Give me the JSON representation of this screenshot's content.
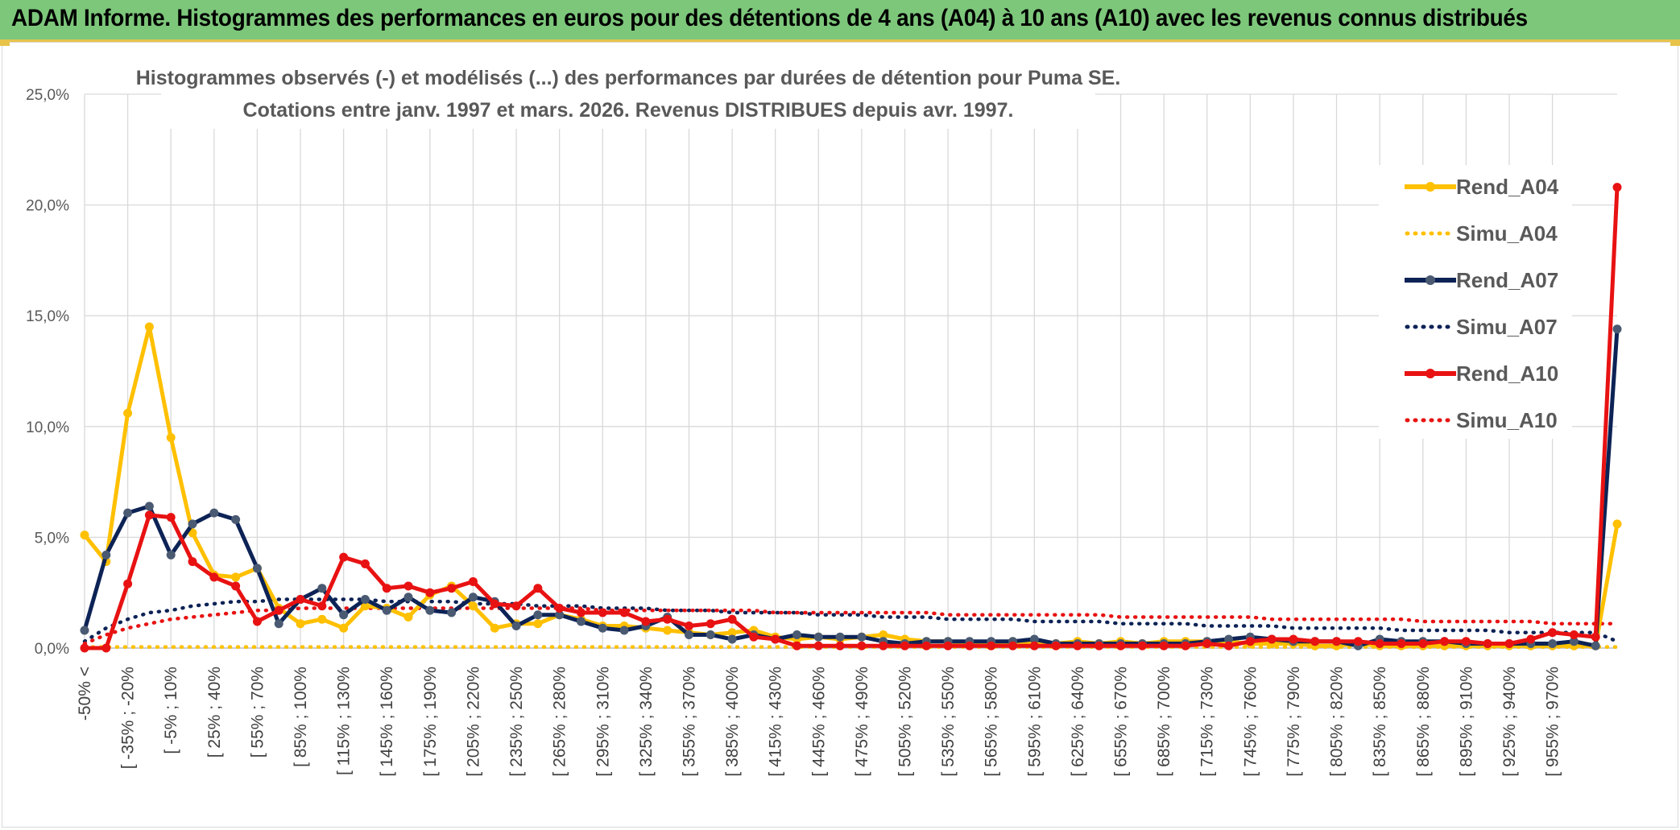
{
  "header": {
    "title": "ADAM Informe. Histogrammes des performances en euros pour des détentions de 4 ans (A04) à 10 ans (A10) avec les revenus connus distribués"
  },
  "chart_data": {
    "type": "line",
    "title_line1": "Histogrammes observés (-) et modélisés (...) des performances par durées de détention pour Puma SE.",
    "title_line2": "Cotations entre janv. 1997 et mars. 2026. Revenus DISTRIBUES depuis avr. 1997.",
    "ylim": [
      0,
      25
    ],
    "yticks": [
      "0,0%",
      "5,0%",
      "10,0%",
      "15,0%",
      "20,0%",
      "25,0%"
    ],
    "ytick_values": [
      0,
      5,
      10,
      15,
      20,
      25
    ],
    "legend_position": "right",
    "grid": true,
    "xtick_labels": [
      "-50% <",
      "[ -35% ; -20%",
      "[ -5% ; 10%",
      "[ 25% ; 40%",
      "[ 55% ; 70%",
      "[ 85% ; 100%",
      "[ 115% ; 130%",
      "[ 145% ; 160%",
      "[ 175% ; 190%",
      "[ 205% ; 220%",
      "[ 235% ; 250%",
      "[ 265% ; 280%",
      "[ 295% ; 310%",
      "[ 325% ; 340%",
      "[ 355% ; 370%",
      "[ 385% ; 400%",
      "[ 415% ; 430%",
      "[ 445% ; 460%",
      "[ 475% ; 490%",
      "[ 505% ; 520%",
      "[ 535% ; 550%",
      "[ 565% ; 580%",
      "[ 595% ; 610%",
      "[ 625% ; 640%",
      "[ 655% ; 670%",
      "[ 685% ; 700%",
      "[ 715% ; 730%",
      "[ 745% ; 760%",
      "[ 775% ; 790%",
      "[ 805% ; 820%",
      "[ 835% ; 850%",
      "[ 865% ; 880%",
      "[ 895% ; 910%",
      "[ 925% ; 940%",
      "[ 955% ; 970%"
    ],
    "series": [
      {
        "name": "Rend_A04",
        "style": "solid",
        "color": "#ffc000",
        "values": [
          5.1,
          3.9,
          10.6,
          14.5,
          9.5,
          5.2,
          3.3,
          3.2,
          3.6,
          1.8,
          1.1,
          1.3,
          0.9,
          1.9,
          1.8,
          1.4,
          2.4,
          2.8,
          1.9,
          0.9,
          1.1,
          1.1,
          1.5,
          1.3,
          1.0,
          1.0,
          0.9,
          0.8,
          0.7,
          0.6,
          0.7,
          0.8,
          0.5,
          0.4,
          0.5,
          0.4,
          0.5,
          0.6,
          0.4,
          0.3,
          0.3,
          0.2,
          0.2,
          0.3,
          0.2,
          0.2,
          0.3,
          0.2,
          0.3,
          0.2,
          0.3,
          0.3,
          0.3,
          0.3,
          0.2,
          0.2,
          0.2,
          0.1,
          0.1,
          0.2,
          0.1,
          0.1,
          0.1,
          0.1,
          0.1,
          0.1,
          0.1,
          0.1,
          0.1,
          0.1,
          0.1,
          5.6
        ]
      },
      {
        "name": "Simu_A04",
        "style": "dotted",
        "color": "#ffc000",
        "values": [
          0.05,
          0.05,
          0.05,
          0.05,
          0.05,
          0.05,
          0.05,
          0.05,
          0.05,
          0.05,
          0.05,
          0.05,
          0.05,
          0.05,
          0.05,
          0.05,
          0.05,
          0.05,
          0.05,
          0.05,
          0.05,
          0.05,
          0.05,
          0.05,
          0.05,
          0.05,
          0.05,
          0.05,
          0.05,
          0.05,
          0.05,
          0.05,
          0.05,
          0.05,
          0.05,
          0.05,
          0.05,
          0.05,
          0.05,
          0.05,
          0.05,
          0.05,
          0.05,
          0.05,
          0.05,
          0.05,
          0.05,
          0.05,
          0.05,
          0.05,
          0.05,
          0.05,
          0.05,
          0.05,
          0.05,
          0.05,
          0.05,
          0.05,
          0.05,
          0.05,
          0.05,
          0.05,
          0.05,
          0.05,
          0.05,
          0.05,
          0.05,
          0.05,
          0.05,
          0.05,
          0.05,
          0.05
        ]
      },
      {
        "name": "Rend_A07",
        "style": "solid",
        "color": "#0d2356",
        "values": [
          0.8,
          4.2,
          6.1,
          6.4,
          4.2,
          5.6,
          6.1,
          5.8,
          3.6,
          1.1,
          2.2,
          2.7,
          1.5,
          2.2,
          1.7,
          2.3,
          1.7,
          1.6,
          2.3,
          2.1,
          1.0,
          1.5,
          1.5,
          1.2,
          0.9,
          0.8,
          1.0,
          1.4,
          0.6,
          0.6,
          0.4,
          0.6,
          0.4,
          0.6,
          0.5,
          0.5,
          0.5,
          0.3,
          0.2,
          0.3,
          0.3,
          0.3,
          0.3,
          0.3,
          0.4,
          0.2,
          0.2,
          0.2,
          0.2,
          0.2,
          0.2,
          0.2,
          0.3,
          0.4,
          0.5,
          0.4,
          0.3,
          0.3,
          0.3,
          0.1,
          0.4,
          0.3,
          0.3,
          0.3,
          0.2,
          0.2,
          0.2,
          0.2,
          0.2,
          0.3,
          0.1,
          14.4
        ]
      },
      {
        "name": "Simu_A07",
        "style": "dotted",
        "color": "#0d2356",
        "values": [
          0.3,
          0.9,
          1.3,
          1.6,
          1.7,
          1.9,
          2.0,
          2.1,
          2.1,
          2.2,
          2.2,
          2.2,
          2.2,
          2.2,
          2.1,
          2.1,
          2.1,
          2.1,
          2.0,
          2.0,
          2.0,
          1.9,
          1.9,
          1.9,
          1.8,
          1.8,
          1.8,
          1.7,
          1.7,
          1.7,
          1.6,
          1.6,
          1.6,
          1.6,
          1.5,
          1.5,
          1.5,
          1.4,
          1.4,
          1.4,
          1.3,
          1.3,
          1.3,
          1.3,
          1.2,
          1.2,
          1.2,
          1.2,
          1.1,
          1.1,
          1.1,
          1.1,
          1.0,
          1.0,
          1.0,
          1.0,
          0.9,
          0.9,
          0.9,
          0.9,
          0.9,
          0.8,
          0.8,
          0.8,
          0.8,
          0.8,
          0.7,
          0.7,
          0.7,
          0.7,
          0.7,
          0.3
        ]
      },
      {
        "name": "Rend_A10",
        "style": "solid",
        "color": "#e81212",
        "values": [
          0.0,
          0.0,
          2.9,
          6.0,
          5.9,
          3.9,
          3.2,
          2.8,
          1.2,
          1.7,
          2.2,
          1.9,
          4.1,
          3.8,
          2.7,
          2.8,
          2.5,
          2.7,
          3.0,
          2.0,
          1.9,
          2.7,
          1.8,
          1.6,
          1.6,
          1.6,
          1.2,
          1.3,
          1.0,
          1.1,
          1.3,
          0.5,
          0.4,
          0.1,
          0.1,
          0.1,
          0.1,
          0.1,
          0.1,
          0.1,
          0.1,
          0.1,
          0.1,
          0.1,
          0.1,
          0.1,
          0.1,
          0.1,
          0.1,
          0.1,
          0.1,
          0.1,
          0.2,
          0.1,
          0.3,
          0.4,
          0.4,
          0.3,
          0.3,
          0.3,
          0.2,
          0.2,
          0.2,
          0.3,
          0.3,
          0.2,
          0.2,
          0.4,
          0.7,
          0.6,
          0.5,
          20.8
        ]
      },
      {
        "name": "Simu_A10",
        "style": "dotted",
        "color": "#e81212",
        "values": [
          0.2,
          0.6,
          0.9,
          1.1,
          1.3,
          1.4,
          1.5,
          1.6,
          1.7,
          1.7,
          1.8,
          1.8,
          1.8,
          1.8,
          1.8,
          1.8,
          1.8,
          1.8,
          1.8,
          1.8,
          1.8,
          1.8,
          1.8,
          1.8,
          1.7,
          1.7,
          1.7,
          1.7,
          1.7,
          1.7,
          1.7,
          1.7,
          1.6,
          1.6,
          1.6,
          1.6,
          1.6,
          1.6,
          1.6,
          1.6,
          1.5,
          1.5,
          1.5,
          1.5,
          1.5,
          1.5,
          1.5,
          1.5,
          1.4,
          1.4,
          1.4,
          1.4,
          1.4,
          1.4,
          1.4,
          1.3,
          1.3,
          1.3,
          1.3,
          1.3,
          1.3,
          1.3,
          1.2,
          1.2,
          1.2,
          1.2,
          1.2,
          1.2,
          1.1,
          1.1,
          1.1,
          1.1
        ]
      }
    ]
  }
}
